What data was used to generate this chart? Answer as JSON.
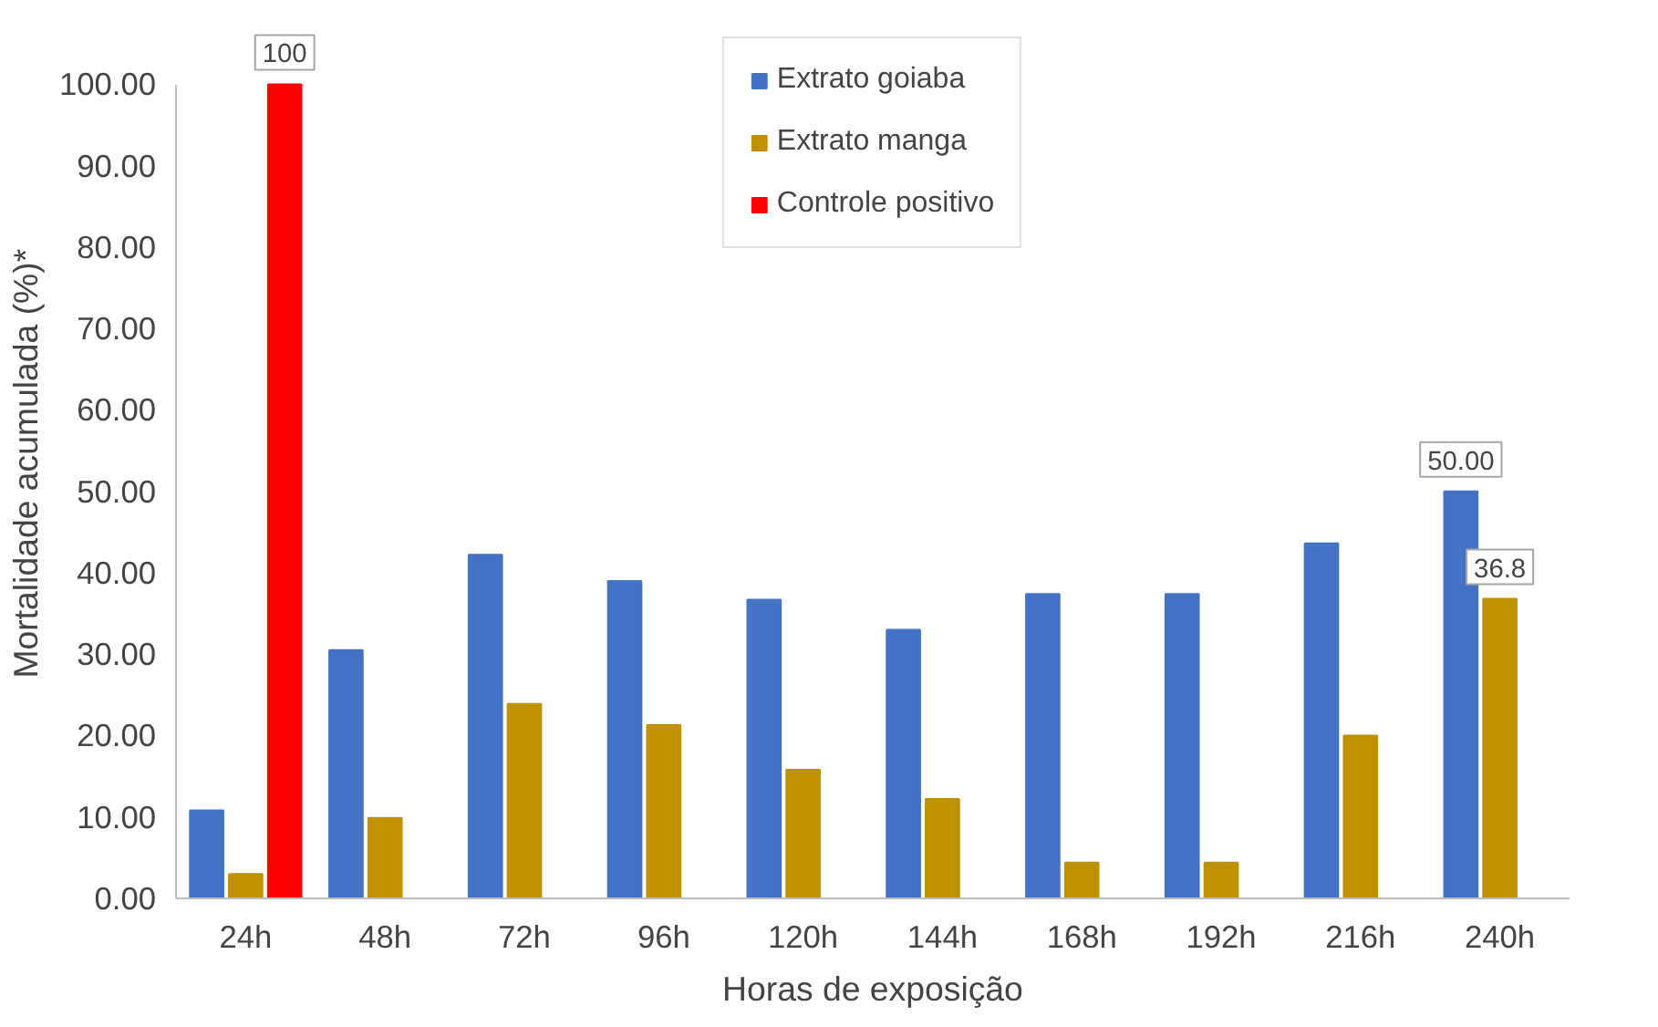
{
  "chart_data": {
    "type": "bar",
    "xlabel": "Horas de exposição",
    "ylabel": "Mortalidade  acumulada (%)*",
    "categories": [
      "24h",
      "48h",
      "72h",
      "96h",
      "120h",
      "144h",
      "168h",
      "192h",
      "216h",
      "240h"
    ],
    "series": [
      {
        "name": "Extrato goiaba",
        "color": "#4472c4",
        "values": [
          10.8,
          30.5,
          42.2,
          39.0,
          36.7,
          33.0,
          37.4,
          37.4,
          43.6,
          50.0
        ],
        "value_labels": [
          null,
          null,
          null,
          null,
          null,
          null,
          null,
          null,
          null,
          "50.00"
        ]
      },
      {
        "name": "Extrato manga",
        "color": "#bf9000",
        "values": [
          3.0,
          9.9,
          23.9,
          21.3,
          15.8,
          12.2,
          4.4,
          4.4,
          20.0,
          36.8
        ],
        "value_labels": [
          null,
          null,
          null,
          null,
          null,
          null,
          null,
          null,
          null,
          "36.8"
        ]
      },
      {
        "name": "Controle positivo",
        "color": "#ff0000",
        "values": [
          100,
          null,
          null,
          null,
          null,
          null,
          null,
          null,
          null,
          null
        ],
        "value_labels": [
          "100",
          null,
          null,
          null,
          null,
          null,
          null,
          null,
          null,
          null
        ]
      }
    ],
    "ylim": [
      0,
      100
    ],
    "yticks": [
      {
        "value": 0,
        "label": "0.00"
      },
      {
        "value": 10,
        "label": "10.00"
      },
      {
        "value": 20,
        "label": "20.00"
      },
      {
        "value": 30,
        "label": "30.00"
      },
      {
        "value": 40,
        "label": "40.00"
      },
      {
        "value": 50,
        "label": "50.00"
      },
      {
        "value": 60,
        "label": "60.00"
      },
      {
        "value": 70,
        "label": "70.00"
      },
      {
        "value": 80,
        "label": "80.00"
      },
      {
        "value": 90,
        "label": "90.00"
      },
      {
        "value": 100,
        "label": "100.00"
      }
    ],
    "grid": false,
    "legend": "top"
  }
}
